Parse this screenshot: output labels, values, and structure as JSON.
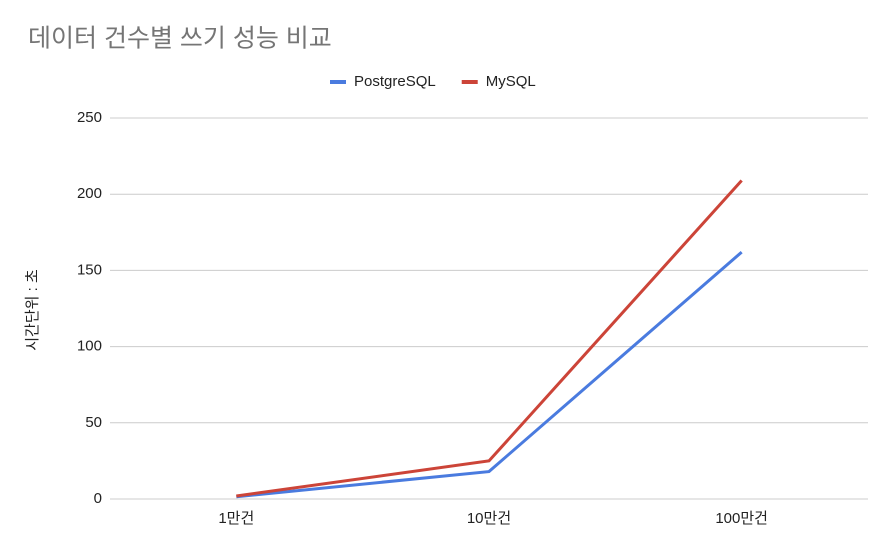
{
  "chart_data": {
    "type": "line",
    "title": "데이터 건수별 쓰기 성능 비교",
    "y_label": "시간단위 : 초",
    "categories": [
      "1만건",
      "10만건",
      "100만건"
    ],
    "series": [
      {
        "name": "PostgreSQL",
        "color": "#4a7bdf",
        "values": [
          1.5,
          18,
          162
        ]
      },
      {
        "name": "MySQL",
        "color": "#cc4438",
        "values": [
          2,
          25,
          209
        ]
      }
    ],
    "ylim": [
      0,
      250
    ],
    "yticks": [
      0,
      50,
      100,
      150,
      200,
      250
    ],
    "grid": true,
    "legend": "top"
  }
}
